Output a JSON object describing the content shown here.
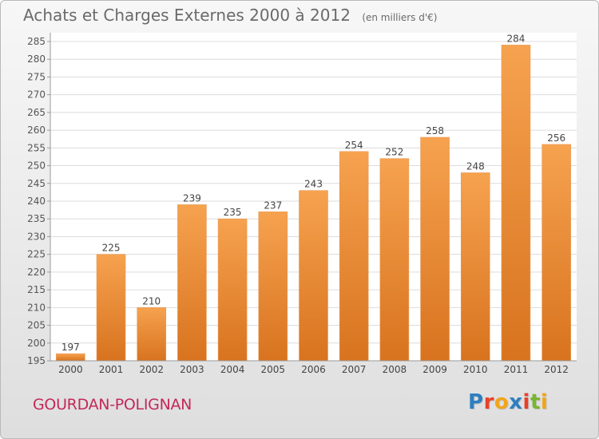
{
  "header": {
    "title": "Achats et Charges Externes 2000 à 2012",
    "subtitle": "(en milliers d'€)"
  },
  "footer": {
    "commune": "GOURDAN-POLIGNAN",
    "logo_text": "Proxiti",
    "logo_colors": [
      "#2e7fc1",
      "#e8402a",
      "#f2a51a",
      "#2e7fc1",
      "#e8402a",
      "#7ab530",
      "#f2a51a"
    ]
  },
  "chart_data": {
    "type": "bar",
    "categories": [
      "2000",
      "2001",
      "2002",
      "2003",
      "2004",
      "2005",
      "2006",
      "2007",
      "2008",
      "2009",
      "2010",
      "2011",
      "2012"
    ],
    "values": [
      197,
      225,
      210,
      239,
      235,
      237,
      243,
      254,
      252,
      258,
      248,
      284,
      256
    ],
    "data_labels": [
      "197",
      "225",
      "210",
      "239",
      "235",
      "237",
      "243",
      "254",
      "252",
      "258",
      "248",
      "284",
      "256"
    ],
    "ylim": [
      195,
      285
    ],
    "yticks": [
      195,
      200,
      205,
      210,
      215,
      220,
      225,
      230,
      235,
      240,
      245,
      250,
      255,
      260,
      265,
      270,
      275,
      280,
      285
    ],
    "grid": true,
    "bar_color_top": "#f6a24f",
    "bar_color_bottom": "#d8731f"
  }
}
